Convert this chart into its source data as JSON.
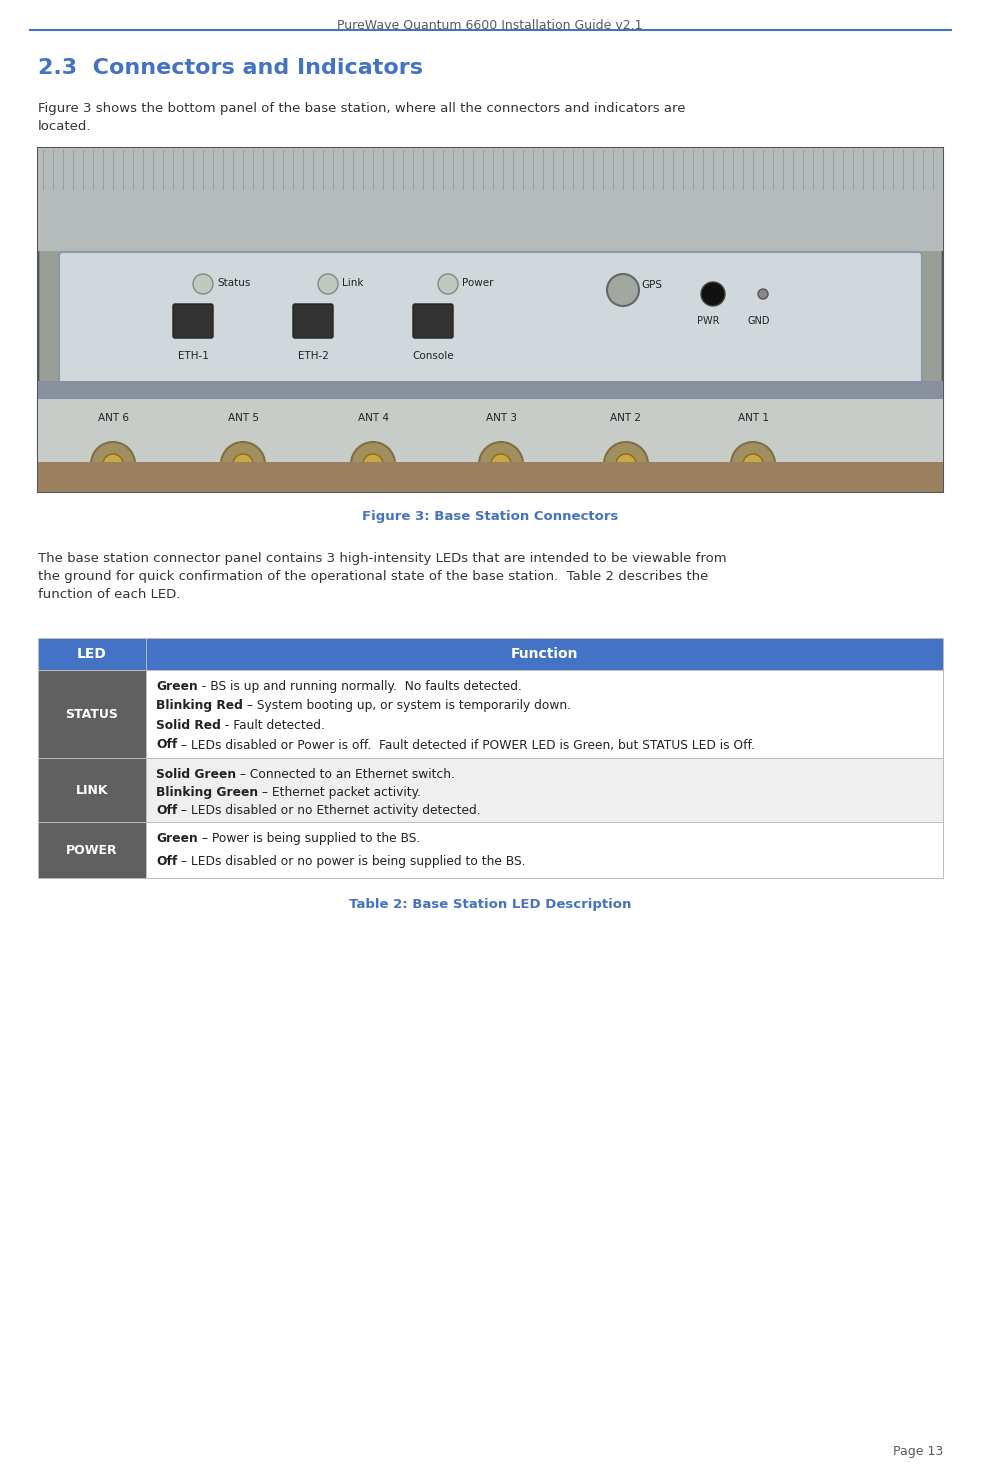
{
  "header_text": "PureWave Quantum 6600 Installation Guide v2.1",
  "header_line_color": "#4472C4",
  "header_text_color": "#595959",
  "section_title": "2.3  Connectors and Indicators",
  "section_title_color": "#4472C4",
  "figure_caption": "Figure 3: Base Station Connectors",
  "figure_caption_color": "#4472C4",
  "body_text_2_line1": "The base station connector panel contains 3 high-intensity LEDs that are intended to be viewable from",
  "body_text_2_line2": "the ground for quick confirmation of the operational state of the base station.  Table 2 describes the",
  "body_text_2_line3": "function of each LED.",
  "table_caption": "Table 2: Base Station LED Description",
  "table_caption_color": "#4472C4",
  "table_header_bg": "#4472C4",
  "table_header_text_color": "#FFFFFF",
  "table_led_bg": "#606060",
  "table_led_text_color": "#FFFFFF",
  "table_row1_bg": "#FFFFFF",
  "table_row2_bg": "#EFEFEF",
  "table_border_color": "#BBBBBB",
  "page_number": "Page 13",
  "page_number_color": "#595959",
  "body_text_color": "#333333",
  "status_lines": [
    {
      "bold": "Green",
      "normal": " - BS is up and running normally.  No faults detected."
    },
    {
      "bold": "Blinking Red",
      "normal": " – System booting up, or system is temporarily down."
    },
    {
      "bold": "Solid Red",
      "normal": " - Fault detected."
    },
    {
      "bold": "Off",
      "normal": " – LEDs disabled or Power is off.  Fault detected if POWER LED is Green, but STATUS LED is Off."
    }
  ],
  "link_lines": [
    {
      "bold": "Solid Green",
      "normal": " – Connected to an Ethernet switch."
    },
    {
      "bold": "Blinking Green",
      "normal": " – Ethernet packet activity."
    },
    {
      "bold": "Off",
      "normal": " – LEDs disabled or no Ethernet activity detected."
    }
  ],
  "power_lines": [
    {
      "bold": "Green",
      "normal": " – Power is being supplied to the BS."
    },
    {
      "bold": "Off",
      "normal": " – LEDs disabled or no power is being supplied to the BS."
    }
  ]
}
